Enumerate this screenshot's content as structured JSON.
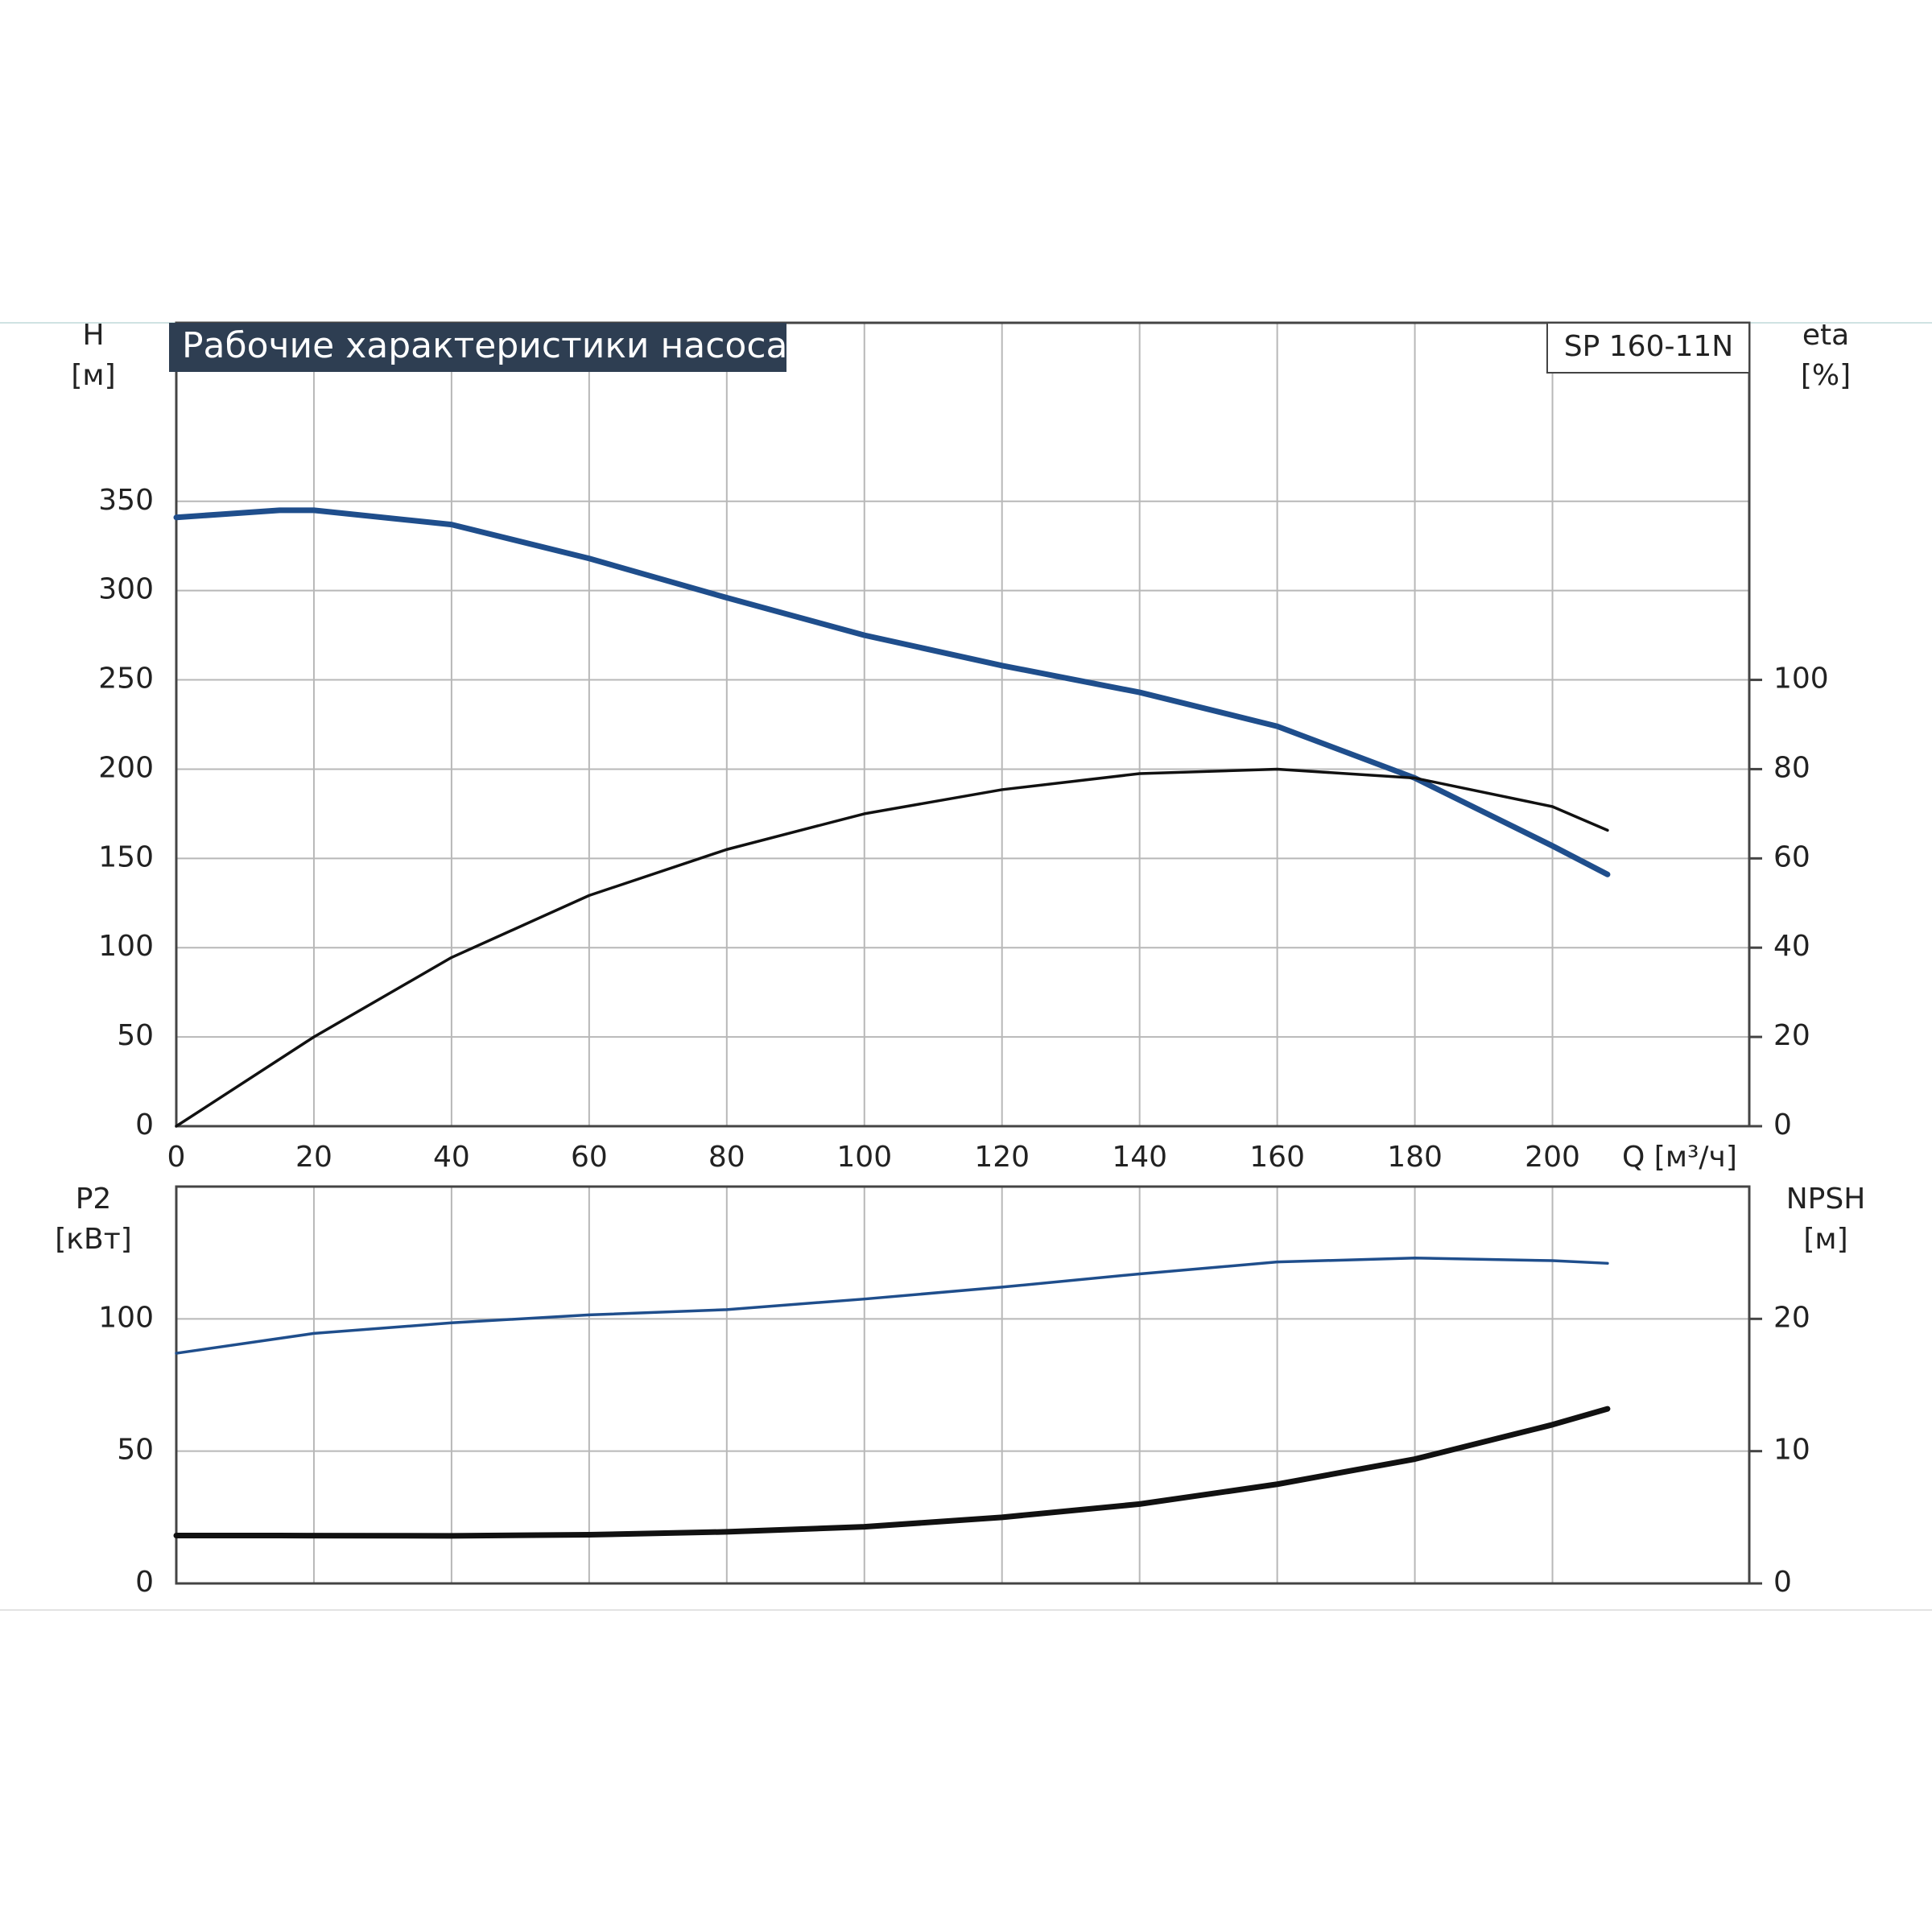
{
  "chart_data": [
    {
      "type": "line",
      "title": "Рабочие характеристики насоса",
      "model": "SP 160-11N",
      "ylabel": [
        "H",
        "[м]"
      ],
      "y2label": [
        "eta",
        "[%]"
      ],
      "xlabel": "Q [м³/ч]",
      "xlim": [
        0,
        228.6
      ],
      "xticks": [
        0,
        20,
        40,
        60,
        80,
        100,
        120,
        140,
        160,
        180,
        200
      ],
      "ylim": [
        0,
        450
      ],
      "yticks": [
        0,
        50,
        100,
        150,
        200,
        250,
        300,
        350
      ],
      "y2lim": [
        0,
        180
      ],
      "y2ticks": [
        0,
        20,
        40,
        60,
        80,
        100
      ],
      "grid": true,
      "series": [
        {
          "name": "H",
          "color": "#1f4e8c",
          "x": [
            0,
            15,
            20,
            40,
            60,
            80,
            100,
            120,
            140,
            160,
            180,
            200,
            208
          ],
          "values": [
            341,
            345,
            345,
            337,
            318,
            296,
            275,
            258,
            243,
            224,
            195,
            157,
            141
          ]
        },
        {
          "name": "eta",
          "color": "#111111",
          "axis": "y2",
          "x": [
            0,
            20,
            40,
            60,
            80,
            100,
            120,
            140,
            160,
            180,
            200,
            208
          ],
          "values": [
            0,
            20,
            37.8,
            51.7,
            62,
            70,
            75.4,
            79,
            80,
            78,
            71.6,
            66.3
          ]
        }
      ]
    },
    {
      "type": "line",
      "ylabel": [
        "P2",
        "[кВт]"
      ],
      "y2label": [
        "NPSH",
        "[м]"
      ],
      "xlim": [
        0,
        228.6
      ],
      "xticks": [
        20,
        40,
        60,
        80,
        100,
        120,
        140,
        160,
        180,
        200
      ],
      "ylim": [
        0,
        150
      ],
      "yticks": [
        0,
        50,
        100
      ],
      "y2lim": [
        0,
        30
      ],
      "y2ticks": [
        0,
        10,
        20
      ],
      "grid": true,
      "series": [
        {
          "name": "P2",
          "color": "#111111",
          "x": [
            0,
            15,
            40,
            60,
            80,
            100,
            120,
            140,
            160,
            180,
            200,
            208
          ],
          "values": [
            18.1,
            18.1,
            18,
            18.4,
            19.5,
            21.4,
            25,
            30,
            37.5,
            47,
            60,
            66
          ]
        },
        {
          "name": "NPSH",
          "color": "#1f4e8c",
          "axis": "y2",
          "x": [
            0,
            20,
            40,
            60,
            80,
            100,
            120,
            140,
            160,
            180,
            200,
            208
          ],
          "values": [
            17.4,
            18.9,
            19.7,
            20.3,
            20.7,
            21.5,
            22.4,
            23.4,
            24.3,
            24.6,
            24.4,
            24.2
          ]
        }
      ]
    }
  ]
}
